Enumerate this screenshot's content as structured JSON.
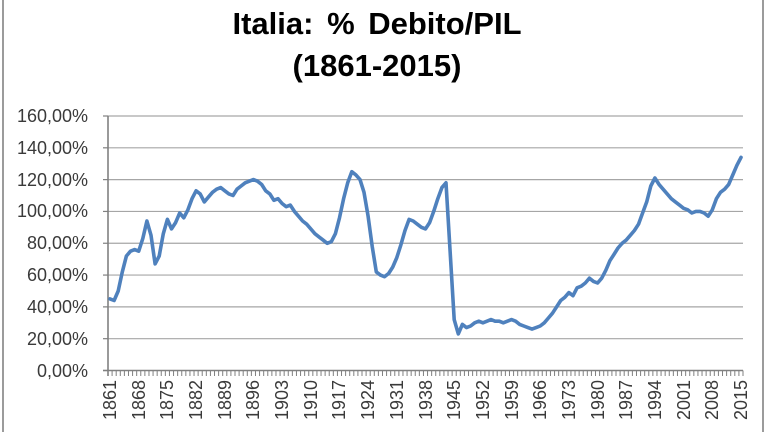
{
  "title": {
    "line1": "Italia: % Debito/PIL",
    "line2": "(1861-2015)"
  },
  "colors": {
    "line": "#4F81BD",
    "gridline": "#A6A6A6",
    "axis": "#808080",
    "tick": "#808080",
    "label_text": "#3A3A3A",
    "title_text": "#000000",
    "frame_edge": "#9B9B9B",
    "background": "#FFFFFF"
  },
  "chart_data": {
    "type": "line",
    "title": "Italia: % Debito/PIL",
    "subtitle": "(1861-2015)",
    "xlabel": "",
    "ylabel": "",
    "x_start": 1861,
    "x_end": 2015,
    "x_tick_interval": 7,
    "x_tick_labels": [
      "1861",
      "1868",
      "1875",
      "1882",
      "1889",
      "1896",
      "1903",
      "1910",
      "1917",
      "1924",
      "1931",
      "1938",
      "1945",
      "1952",
      "1959",
      "1966",
      "1973",
      "1980",
      "1987",
      "1994",
      "2001",
      "2008",
      "2015"
    ],
    "y_tick_labels": [
      "0,00%",
      "20,00%",
      "40,00%",
      "60,00%",
      "80,00%",
      "100,00%",
      "120,00%",
      "140,00%",
      "160,00%"
    ],
    "ylim": [
      0,
      160
    ],
    "y_tick_step": 20,
    "grid": "horizontal",
    "legend": "none",
    "series": [
      {
        "name": "Debito/PIL %",
        "color": "#4F81BD",
        "values": [
          45,
          44,
          50,
          62,
          72,
          75,
          76,
          75,
          83,
          94,
          85,
          67,
          72,
          86,
          95,
          89,
          93,
          99,
          96,
          101,
          108,
          113,
          111,
          106,
          109,
          112,
          114,
          115,
          113,
          111,
          110,
          114,
          116,
          118,
          119,
          120,
          119,
          117,
          113,
          111,
          107,
          108,
          105,
          103,
          104,
          100,
          97,
          94,
          92,
          89,
          86,
          84,
          82,
          80,
          81,
          86,
          96,
          108,
          118,
          125,
          123,
          120,
          112,
          97,
          78,
          62,
          60,
          59,
          61,
          65,
          71,
          79,
          88,
          95,
          94,
          92,
          90,
          89,
          93,
          100,
          108,
          115,
          118,
          75,
          32,
          23,
          29,
          27,
          28,
          30,
          31,
          30,
          31,
          32,
          31,
          31,
          30,
          31,
          32,
          31,
          29,
          28,
          27,
          26,
          27,
          28,
          30,
          33,
          36,
          40,
          44,
          46,
          49,
          47,
          52,
          53,
          55,
          58,
          56,
          55,
          58,
          63,
          69,
          73,
          77,
          80,
          82,
          85,
          88,
          92,
          99,
          106,
          116,
          121,
          117,
          114,
          111,
          108,
          106,
          104,
          102,
          101,
          99,
          100,
          100,
          99,
          97,
          101,
          108,
          112,
          114,
          117,
          123,
          129,
          134
        ]
      }
    ]
  }
}
